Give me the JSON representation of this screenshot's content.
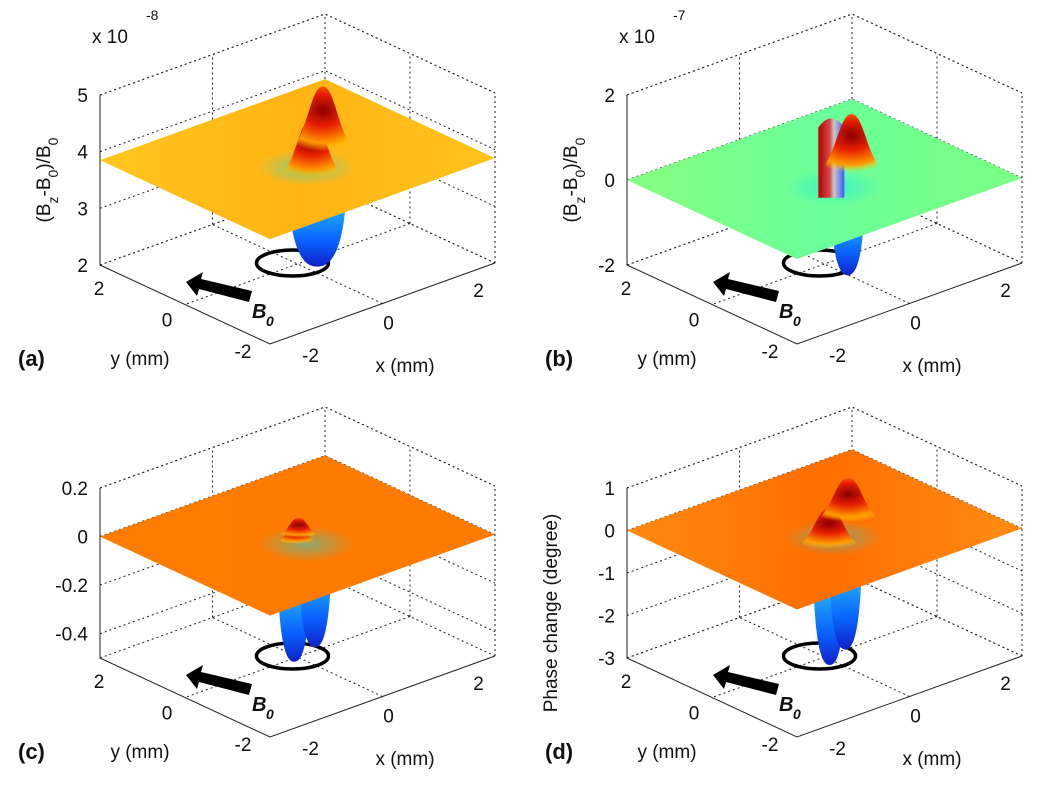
{
  "chart_data": [
    {
      "type": "surface3d",
      "panel_label": "(a)",
      "exponent_label": "x 10",
      "exponent_power": "-8",
      "zlabel_parts": [
        "(B",
        "z",
        "-B",
        "0",
        ")/B",
        "0"
      ],
      "xlabel": "x (mm)",
      "ylabel": "y (mm)",
      "x_ticks": [
        "-2",
        "0",
        "2"
      ],
      "y_ticks": [
        "-2",
        "0",
        "2"
      ],
      "z_ticks": [
        "2",
        "3",
        "4",
        "5"
      ],
      "zlim": [
        2,
        5
      ],
      "baseline": 3.85,
      "peaks": [
        {
          "x": -0.25,
          "y": -0.75,
          "z": 4.85
        },
        {
          "x": 0.6,
          "y": 0.05,
          "z": 4.95
        }
      ],
      "dip": {
        "x": 0.1,
        "y": -0.45,
        "z": 2.05
      },
      "arrow_label": "B",
      "arrow_sub": "0"
    },
    {
      "type": "surface3d",
      "panel_label": "(b)",
      "exponent_label": "x 10",
      "exponent_power": "-7",
      "zlabel_parts": [
        "(B",
        "z",
        "-B",
        "0",
        ")/B",
        "0"
      ],
      "xlabel": "x (mm)",
      "ylabel": "y (mm)",
      "x_ticks": [
        "-2",
        "0",
        "2"
      ],
      "y_ticks": [
        "-2",
        "0",
        "2"
      ],
      "z_ticks": [
        "-2",
        "0",
        "2"
      ],
      "zlim": [
        -2,
        2
      ],
      "baseline": 0,
      "peaks": [
        {
          "x": -0.15,
          "y": -0.4,
          "z": 1.7
        },
        {
          "x": 0.6,
          "y": 0.0,
          "z": 1.3
        }
      ],
      "dip": {
        "x": 0.1,
        "y": -0.55,
        "z": -2.1
      },
      "arrow_label": "B",
      "arrow_sub": "0"
    },
    {
      "type": "surface3d",
      "panel_label": "(c)",
      "zlabel_parts": [],
      "xlabel": "x (mm)",
      "ylabel": "y (mm)",
      "x_ticks": [
        "-2",
        "0",
        "2"
      ],
      "y_ticks": [
        "-2",
        "0",
        "2"
      ],
      "z_ticks": [
        "-0.4",
        "-0.2",
        "0",
        "0.2"
      ],
      "zlim": [
        -0.5,
        0.2
      ],
      "baseline": 0,
      "peaks": [
        {
          "x": -0.1,
          "y": -0.1,
          "z": 0.06
        },
        {
          "x": 0.1,
          "y": 0.1,
          "z": 0.06
        }
      ],
      "dips": [
        {
          "x": -0.3,
          "y": -0.3,
          "z": -0.48
        },
        {
          "x": 0.35,
          "y": -0.05,
          "z": -0.48
        }
      ],
      "arrow_label": "B",
      "arrow_sub": "0"
    },
    {
      "type": "surface3d",
      "panel_label": "(d)",
      "zlabel_parts": [
        "Phase change (degree)"
      ],
      "xlabel": "x (mm)",
      "ylabel": "y (mm)",
      "x_ticks": [
        "-2",
        "0",
        "2"
      ],
      "y_ticks": [
        "-2",
        "0",
        "2"
      ],
      "z_ticks": [
        "-3",
        "-2",
        "-1",
        "0",
        "1"
      ],
      "zlim": [
        -3,
        1
      ],
      "baseline": 0,
      "peaks": [
        {
          "x": -0.35,
          "y": -0.6,
          "z": 0.85
        },
        {
          "x": 0.6,
          "y": 0.1,
          "z": 0.95
        }
      ],
      "dips": [
        {
          "x": -0.15,
          "y": -0.35,
          "z": -3.0
        },
        {
          "x": 0.35,
          "y": -0.15,
          "z": -2.9
        }
      ],
      "arrow_label": "B",
      "arrow_sub": "0"
    }
  ]
}
